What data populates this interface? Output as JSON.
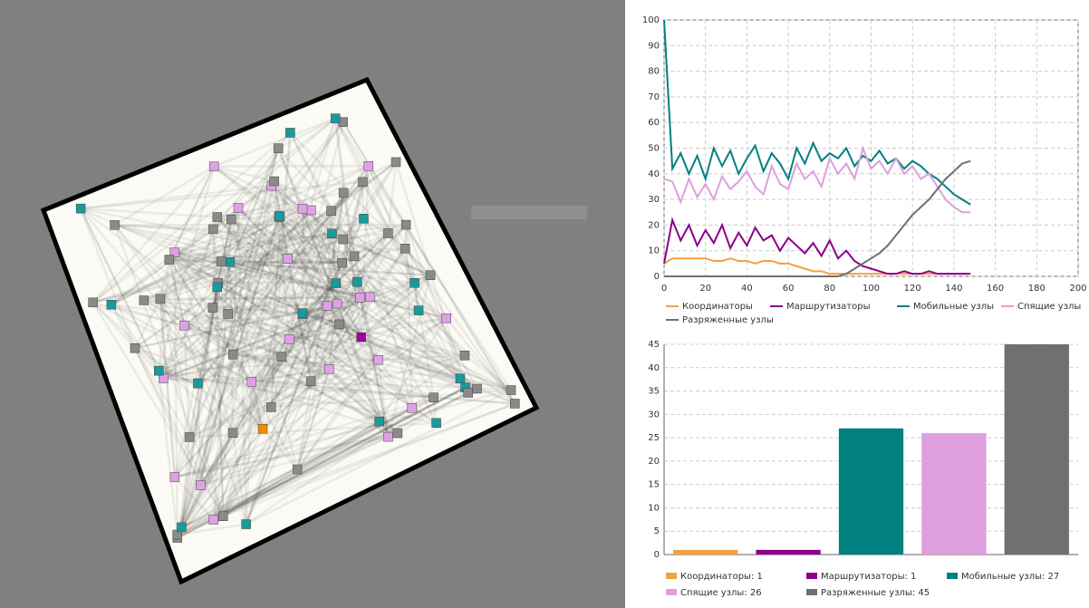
{
  "chart_data": [
    {
      "type": "line",
      "x": [
        0,
        4,
        8,
        12,
        16,
        20,
        24,
        28,
        32,
        36,
        40,
        44,
        48,
        52,
        56,
        60,
        64,
        68,
        72,
        76,
        80,
        84,
        88,
        92,
        96,
        100,
        104,
        108,
        112,
        116,
        120,
        124,
        128,
        132,
        136,
        140,
        144,
        148
      ],
      "series": [
        {
          "name": "Координаторы",
          "color": "#f5a040",
          "values": [
            5,
            7,
            7,
            7,
            7,
            7,
            6,
            6,
            7,
            6,
            6,
            5,
            6,
            6,
            5,
            5,
            4,
            3,
            2,
            2,
            1,
            1,
            1,
            1,
            1,
            1,
            1,
            1,
            1,
            1,
            1,
            1,
            1,
            1,
            1,
            1,
            1,
            1
          ]
        },
        {
          "name": "Маршрутизаторы",
          "color": "#8b008b",
          "values": [
            5,
            22,
            14,
            20,
            12,
            18,
            13,
            20,
            11,
            17,
            12,
            19,
            14,
            16,
            10,
            15,
            12,
            9,
            13,
            8,
            14,
            7,
            10,
            6,
            4,
            3,
            2,
            1,
            1,
            2,
            1,
            1,
            2,
            1,
            1,
            1,
            1,
            1
          ]
        },
        {
          "name": "Мобильные узлы",
          "color": "#008080",
          "values": [
            100,
            42,
            48,
            40,
            47,
            38,
            50,
            43,
            49,
            40,
            46,
            51,
            41,
            48,
            44,
            38,
            50,
            44,
            52,
            45,
            48,
            46,
            50,
            43,
            47,
            45,
            49,
            44,
            46,
            42,
            45,
            43,
            40,
            38,
            35,
            32,
            30,
            28
          ]
        },
        {
          "name": "Спящие узлы",
          "color": "#dda0dd",
          "values": [
            38,
            37,
            29,
            38,
            31,
            36,
            30,
            39,
            34,
            37,
            41,
            35,
            32,
            43,
            36,
            34,
            44,
            38,
            41,
            35,
            46,
            40,
            44,
            38,
            50,
            42,
            45,
            40,
            46,
            40,
            43,
            38,
            40,
            35,
            30,
            27,
            25,
            25
          ]
        },
        {
          "name": "Разряженные узлы",
          "color": "#707070",
          "values": [
            0,
            0,
            0,
            0,
            0,
            0,
            0,
            0,
            0,
            0,
            0,
            0,
            0,
            0,
            0,
            0,
            0,
            0,
            0,
            0,
            0,
            0,
            1,
            3,
            5,
            7,
            9,
            12,
            16,
            20,
            24,
            27,
            30,
            34,
            38,
            41,
            44,
            45
          ]
        }
      ],
      "xlim": [
        0,
        200
      ],
      "xticks": [
        0,
        20,
        40,
        60,
        80,
        100,
        120,
        140,
        160,
        180,
        200
      ],
      "ylim": [
        0,
        100
      ],
      "yticks": [
        0,
        10,
        20,
        30,
        40,
        50,
        60,
        70,
        80,
        90,
        100
      ],
      "grid": true
    },
    {
      "type": "bar",
      "categories": [
        "Координаторы",
        "Маршрутизаторы",
        "Мобильные узлы",
        "Спящие узлы",
        "Разряженные узлы"
      ],
      "values": [
        1,
        1,
        27,
        26,
        45
      ],
      "legend_labels": [
        "Координаторы: 1",
        "Маршрутизаторы: 1",
        "Мобильные узлы: 27",
        "Спящие узлы: 26",
        "Разряженные узлы: 45"
      ],
      "colors": [
        "#f5a040",
        "#8b008b",
        "#008080",
        "#dda0dd",
        "#707070"
      ],
      "ylim": [
        0,
        45
      ],
      "yticks": [
        0,
        5,
        10,
        15,
        20,
        25,
        30,
        35,
        40,
        45
      ],
      "grid": true
    }
  ]
}
